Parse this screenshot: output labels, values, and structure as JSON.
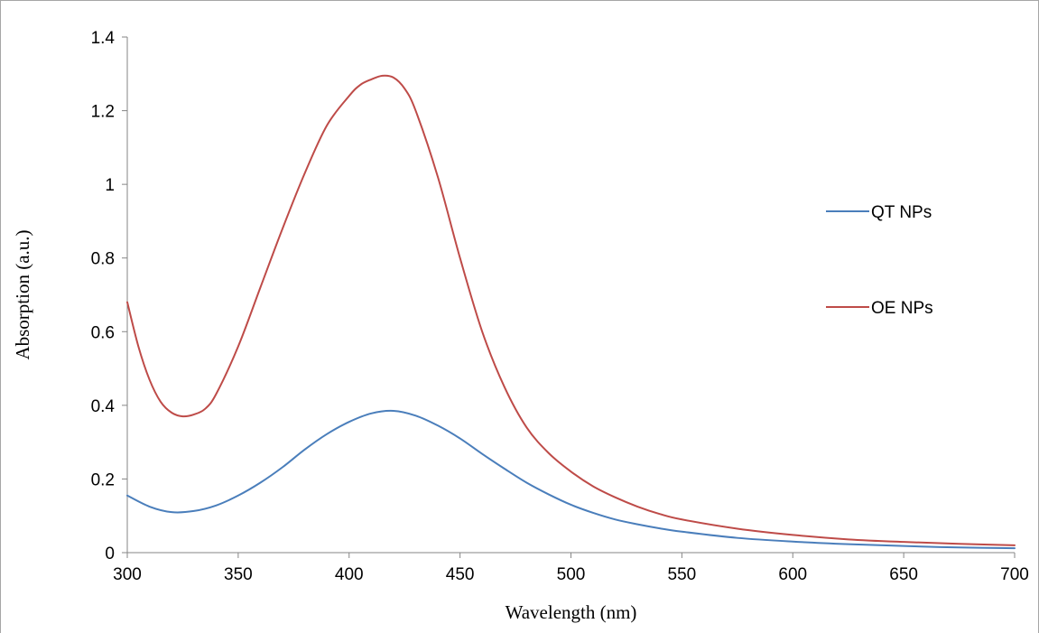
{
  "chart_data": {
    "type": "line",
    "title": "",
    "xlabel": "Wavelength  (nm)",
    "ylabel": "Absorption (a.u.)",
    "xlim": [
      300,
      700
    ],
    "ylim": [
      0,
      1.4
    ],
    "x_ticks": [
      300,
      350,
      400,
      450,
      500,
      550,
      600,
      650,
      700
    ],
    "x_tick_labels": [
      "300",
      "350",
      "400",
      "450",
      "500",
      "550",
      "600",
      "650",
      "700"
    ],
    "y_ticks": [
      0,
      0.2,
      0.4,
      0.6,
      0.8,
      1,
      1.2,
      1.4
    ],
    "y_tick_labels": [
      "0",
      "0.2",
      "0.4",
      "0.6",
      "0.8",
      "1",
      "1.2",
      "1.4"
    ],
    "grid": false,
    "legend_position": "right",
    "series": [
      {
        "name": "QT NPs",
        "color": "#4a7ebb",
        "x": [
          300,
          310,
          320,
          330,
          340,
          350,
          360,
          370,
          380,
          390,
          400,
          410,
          420,
          430,
          440,
          450,
          460,
          470,
          480,
          490,
          500,
          510,
          520,
          530,
          540,
          550,
          575,
          600,
          625,
          650,
          675,
          700
        ],
        "y": [
          0.155,
          0.125,
          0.11,
          0.113,
          0.128,
          0.155,
          0.19,
          0.232,
          0.28,
          0.322,
          0.355,
          0.378,
          0.385,
          0.372,
          0.345,
          0.31,
          0.268,
          0.228,
          0.19,
          0.158,
          0.13,
          0.108,
          0.09,
          0.077,
          0.066,
          0.057,
          0.04,
          0.03,
          0.023,
          0.018,
          0.014,
          0.012
        ]
      },
      {
        "name": "OE NPs",
        "color": "#be4b48",
        "x": [
          300,
          305,
          310,
          315,
          320,
          325,
          330,
          335,
          340,
          350,
          360,
          370,
          380,
          390,
          400,
          405,
          410,
          415,
          420,
          425,
          430,
          440,
          450,
          460,
          470,
          480,
          490,
          500,
          510,
          520,
          530,
          540,
          550,
          575,
          600,
          625,
          650,
          675,
          700
        ],
        "y": [
          0.68,
          0.56,
          0.47,
          0.41,
          0.38,
          0.37,
          0.375,
          0.39,
          0.43,
          0.56,
          0.72,
          0.88,
          1.03,
          1.16,
          1.24,
          1.27,
          1.285,
          1.295,
          1.29,
          1.26,
          1.2,
          1.02,
          0.8,
          0.6,
          0.45,
          0.34,
          0.27,
          0.22,
          0.18,
          0.15,
          0.125,
          0.105,
          0.09,
          0.065,
          0.048,
          0.036,
          0.029,
          0.024,
          0.02
        ]
      }
    ]
  }
}
